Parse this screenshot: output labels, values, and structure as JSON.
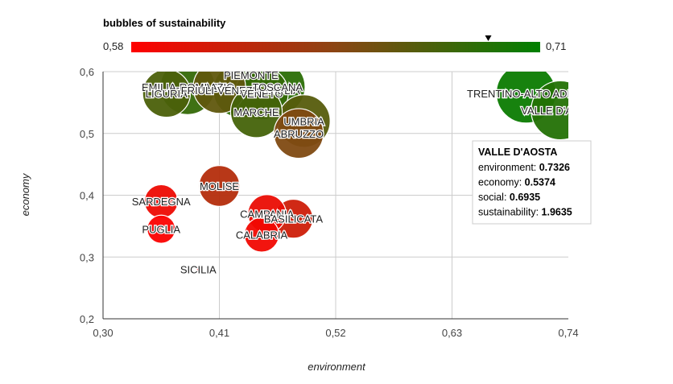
{
  "chart_data": {
    "type": "bubble",
    "xlabel": "environment",
    "ylabel": "economy",
    "xlim": [
      0.3,
      0.74
    ],
    "ylim": [
      0.2,
      0.6
    ],
    "x_ticks": [
      "0,30",
      "0,41",
      "0,52",
      "0,63",
      "0,74"
    ],
    "x_tick_values": [
      0.3,
      0.41,
      0.52,
      0.63,
      0.74
    ],
    "y_ticks": [
      "0,6",
      "0,5",
      "0,4",
      "0,3",
      "0,2"
    ],
    "y_tick_values": [
      0.6,
      0.5,
      0.4,
      0.3,
      0.2
    ],
    "grid": true,
    "color_axis": {
      "title": "bubbles of sustainability",
      "min_label": "0,58",
      "max_label": "0,71",
      "min": 0.58,
      "max": 0.71,
      "min_color": "#ff0000",
      "mid_color": "#8b4513",
      "max_color": "#008000",
      "marker_value": 0.6935
    },
    "points": [
      {
        "label": "EMILIA-ROMAGNA",
        "x": 0.38,
        "y": 0.575,
        "color_value": 0.685,
        "size": 1.85
      },
      {
        "label": "LIGURIA",
        "x": 0.36,
        "y": 0.565,
        "color_value": 0.675,
        "size": 1.65
      },
      {
        "label": "LAZIO",
        "x": 0.41,
        "y": 0.575,
        "color_value": 0.665,
        "size": 1.78
      },
      {
        "label": "FRIULI-VENEZIA-GIULIA",
        "x": 0.43,
        "y": 0.57,
        "color_value": 0.69,
        "size": 1.84
      },
      {
        "label": "PIEMONTE",
        "x": 0.44,
        "y": 0.595,
        "color_value": 0.68,
        "size": 1.82
      },
      {
        "label": "VENETO",
        "x": 0.45,
        "y": 0.565,
        "color_value": 0.685,
        "size": 1.8
      },
      {
        "label": "TOSCANA",
        "x": 0.465,
        "y": 0.575,
        "color_value": 0.69,
        "size": 1.86
      },
      {
        "label": "MARCHE",
        "x": 0.445,
        "y": 0.535,
        "color_value": 0.678,
        "size": 1.76
      },
      {
        "label": "UMBRIA",
        "x": 0.49,
        "y": 0.52,
        "color_value": 0.67,
        "size": 1.78
      },
      {
        "label": "ABRUZZO",
        "x": 0.485,
        "y": 0.5,
        "color_value": 0.65,
        "size": 1.7
      },
      {
        "label": "TRENTINO-ALTO ADIGE",
        "x": 0.7,
        "y": 0.565,
        "color_value": 0.705,
        "size": 1.98
      },
      {
        "label": "VALLE D'AOSTA",
        "x": 0.7326,
        "y": 0.5374,
        "color_value": 0.6935,
        "size": 1.9635
      },
      {
        "label": "MOLISE",
        "x": 0.41,
        "y": 0.415,
        "color_value": 0.622,
        "size": 1.45
      },
      {
        "label": "SARDEGNA",
        "x": 0.355,
        "y": 0.39,
        "color_value": 0.59,
        "size": 1.25
      },
      {
        "label": "PUGLIA",
        "x": 0.355,
        "y": 0.345,
        "color_value": 0.582,
        "size": 1.1
      },
      {
        "label": "CAMPANIA",
        "x": 0.455,
        "y": 0.37,
        "color_value": 0.592,
        "size": 1.38
      },
      {
        "label": "BASILICATA",
        "x": 0.48,
        "y": 0.362,
        "color_value": 0.608,
        "size": 1.4
      },
      {
        "label": "CALABRIA",
        "x": 0.45,
        "y": 0.336,
        "color_value": 0.588,
        "size": 1.28
      },
      {
        "label": "SICILIA",
        "x": 0.39,
        "y": 0.28,
        "color_value": 0.56,
        "size": 0.4
      }
    ],
    "tooltip": {
      "title": "VALLE D'AOSTA",
      "rows": [
        {
          "label": "environment:",
          "value": "0.7326"
        },
        {
          "label": "economy:",
          "value": "0.5374"
        },
        {
          "label": "social:",
          "value": "0.6935"
        },
        {
          "label": "sustainability:",
          "value": "1.9635"
        }
      ]
    }
  }
}
